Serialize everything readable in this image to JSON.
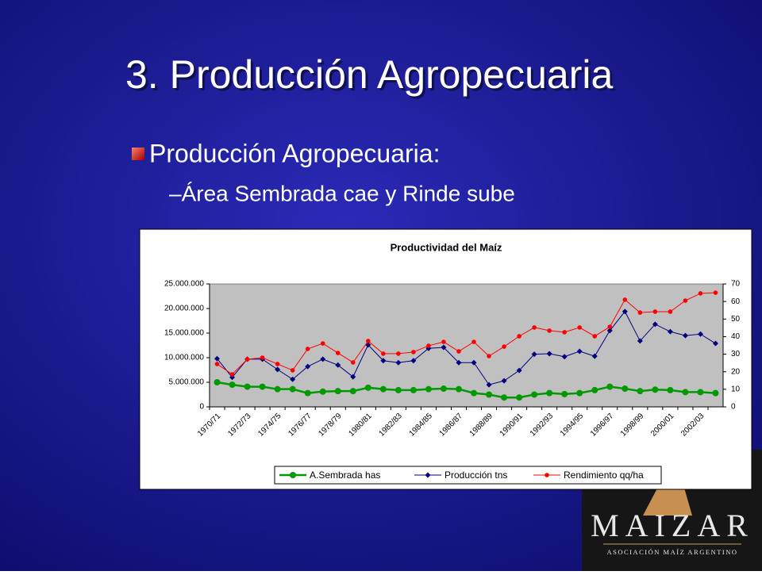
{
  "slide": {
    "title": "3. Producción Agropecuaria",
    "bullet": "Producción Agropecuaria:",
    "sub_bullet": "–Área Sembrada cae y Rinde sube"
  },
  "logo": {
    "name": "MAIZAR",
    "tagline": "ASOCIACIÓN MAÍZ ARGENTINO"
  },
  "chart_data": {
    "type": "line",
    "title": "Productividad del Maíz",
    "categories": [
      "1970/71",
      null,
      "1972/73",
      null,
      "1974/75",
      null,
      "1976/77",
      null,
      "1978/79",
      null,
      "1980/81",
      null,
      "1982/83",
      null,
      "1984/85",
      null,
      "1986/87",
      null,
      "1988/89",
      null,
      "1990/91",
      null,
      "1992/93",
      null,
      "1994/95",
      null,
      "1996/97",
      null,
      "1998/99",
      null,
      "2000/01",
      null,
      "2002/03",
      null
    ],
    "series": [
      {
        "name": "A.Sembrada has",
        "color": "#009900",
        "marker": "circle",
        "values": [
          5000000,
          4500000,
          4100000,
          4100000,
          3600000,
          3600000,
          2800000,
          3100000,
          3200000,
          3200000,
          3900000,
          3600000,
          3400000,
          3400000,
          3600000,
          3700000,
          3600000,
          2800000,
          2500000,
          1900000,
          1900000,
          2500000,
          2800000,
          2600000,
          2800000,
          3400000,
          4100000,
          3700000,
          3200000,
          3500000,
          3400000,
          3000000,
          3000000,
          2800000
        ]
      },
      {
        "name": "Producción tns",
        "color": "#000080",
        "marker": "diamond",
        "values": [
          9800000,
          6000000,
          9700000,
          9700000,
          7600000,
          5600000,
          8200000,
          9700000,
          8500000,
          6100000,
          12600000,
          9400000,
          9000000,
          9400000,
          11900000,
          12100000,
          9000000,
          9000000,
          4500000,
          5300000,
          7400000,
          10700000,
          10800000,
          10200000,
          11300000,
          10300000,
          15500000,
          19400000,
          13400000,
          16800000,
          15300000,
          14500000,
          14800000,
          12900000
        ]
      },
      {
        "name": "Rendimiento qq/ha",
        "color": "#ff0000",
        "marker": "circle",
        "axis": "y2",
        "values": [
          24.4,
          18.5,
          27.1,
          28,
          24.4,
          20.8,
          33,
          36.1,
          30.7,
          25.3,
          37.5,
          30.3,
          30.3,
          31.2,
          34.8,
          37,
          31.6,
          37,
          28.9,
          34.3,
          40.2,
          45.2,
          43.4,
          42.5,
          45.2,
          40.2,
          45.6,
          61,
          53.7,
          54.2,
          54.2,
          60.5,
          64.6,
          65
        ]
      }
    ],
    "ylim": [
      0,
      25000000
    ],
    "yticks": [
      0,
      {
        "value": 5000000,
        "label": "5.000.000"
      },
      {
        "value": 10000000,
        "label": "10.000.000"
      },
      {
        "value": 15000000,
        "label": "15.000.000"
      },
      {
        "value": 20000000,
        "label": "20.000.000"
      },
      {
        "value": 25000000,
        "label": "25.000.000"
      }
    ],
    "y2lim": [
      0,
      70
    ],
    "y2ticks": [
      0,
      10,
      20,
      30,
      40,
      50,
      60,
      70
    ],
    "grid": false,
    "legend": "bottom"
  }
}
